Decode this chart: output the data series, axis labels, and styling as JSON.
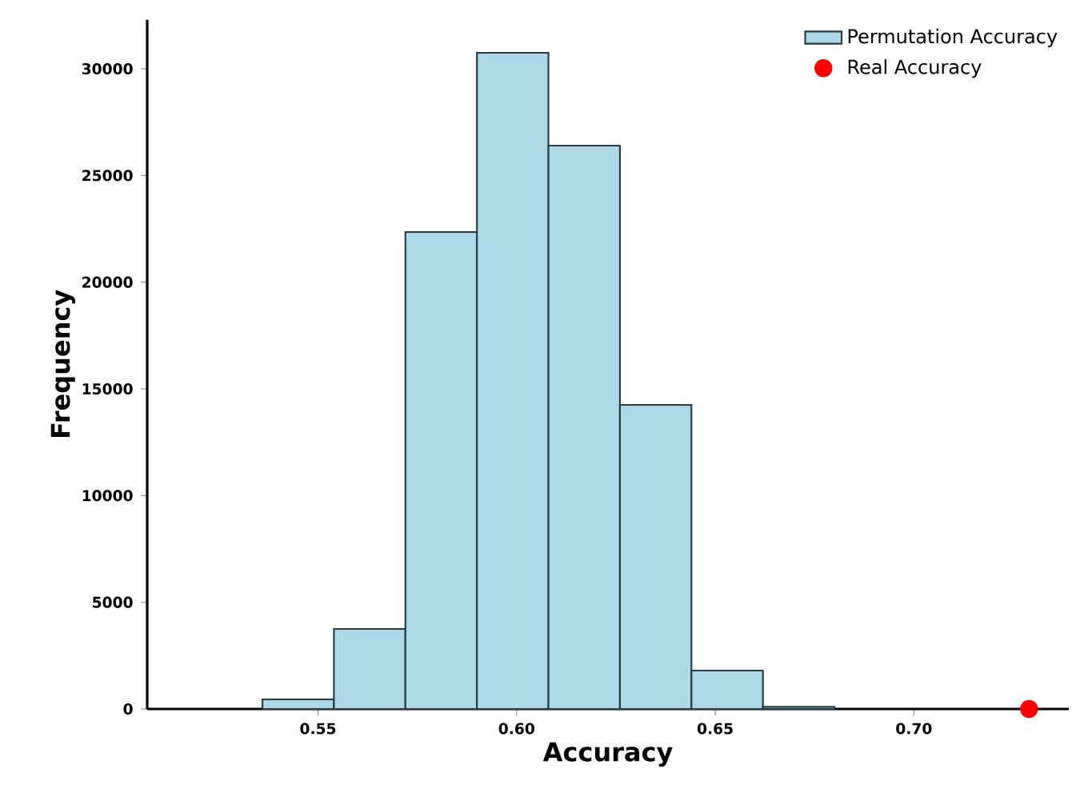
{
  "chart_data": {
    "type": "histogram",
    "xlabel": "Accuracy",
    "ylabel": "Frequency",
    "series": [
      {
        "name": "Permutation Accuracy",
        "color": "#add8e6",
        "bins": [
          0.536,
          0.554,
          0.572,
          0.59,
          0.608,
          0.626,
          0.644,
          0.662,
          0.68
        ],
        "values": [
          450,
          3750,
          22350,
          30750,
          26400,
          14250,
          1800,
          100
        ]
      },
      {
        "type": "scatter",
        "name": "Real Accuracy",
        "color": "#ff0000",
        "marker": "circle",
        "x": [
          0.729
        ],
        "values": [
          0
        ]
      }
    ],
    "xlim": [
      0.507,
      0.739
    ],
    "ylim": [
      0,
      32300
    ],
    "xticks": [
      0.55,
      {
        "value": 0.6,
        "label": "0.60"
      },
      0.65,
      {
        "value": 0.7,
        "label": "0.70"
      }
    ],
    "yticks": [
      0,
      5000,
      10000,
      15000,
      20000,
      25000,
      30000
    ],
    "grid": false,
    "legend": "top right"
  }
}
